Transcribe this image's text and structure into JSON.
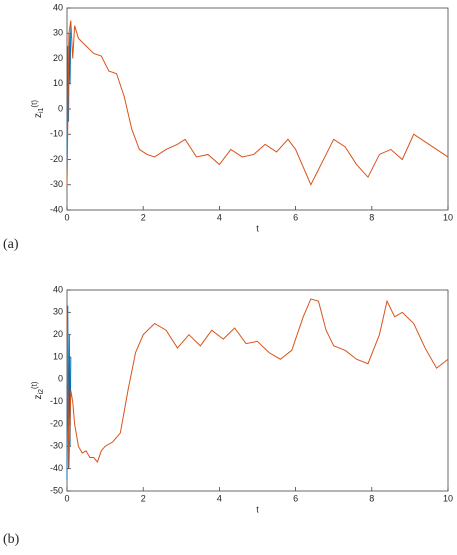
{
  "chart_data": [
    {
      "type": "line",
      "panel": "(a)",
      "xlabel": "t",
      "ylabel": {
        "base": "z",
        "subscript": "i1",
        "rest": "(t)"
      },
      "xlim": [
        0,
        10
      ],
      "xticks": [
        0,
        2,
        4,
        6,
        8,
        10
      ],
      "ylim": [
        -40,
        40
      ],
      "yticks": [
        -40,
        -30,
        -20,
        -10,
        0,
        10,
        20,
        30,
        40
      ],
      "series": [
        {
          "color": "#0072bd",
          "x": [
            0,
            0.02,
            0.04,
            0.06,
            0.08,
            0.1,
            0.12
          ],
          "values": [
            -28,
            25,
            -5,
            30,
            10,
            33,
            28
          ]
        },
        {
          "color": "#d95319",
          "x": [
            0,
            0.05,
            0.1,
            0.15,
            0.2,
            0.3,
            0.5,
            0.7,
            0.9,
            1.1,
            1.3,
            1.5,
            1.7,
            1.9,
            2.1,
            2.3,
            2.6,
            2.9,
            3.1,
            3.4,
            3.7,
            4.0,
            4.3,
            4.6,
            4.9,
            5.2,
            5.5,
            5.8,
            6.0,
            6.2,
            6.4,
            6.6,
            6.8,
            7.0,
            7.3,
            7.6,
            7.9,
            8.2,
            8.5,
            8.8,
            9.1,
            9.4,
            9.7,
            10
          ],
          "values": [
            -30,
            30,
            35,
            20,
            33,
            28,
            25,
            22,
            21,
            15,
            14,
            5,
            -8,
            -16,
            -18,
            -19,
            -16,
            -14,
            -12,
            -19,
            -18,
            -22,
            -16,
            -19,
            -18,
            -14,
            -17,
            -12,
            -16,
            -23,
            -30,
            -24,
            -18,
            -12,
            -15,
            -22,
            -27,
            -18,
            -16,
            -20,
            -10,
            -13,
            -16,
            -19
          ]
        }
      ]
    },
    {
      "type": "line",
      "panel": "(b)",
      "xlabel": "t",
      "ylabel": {
        "base": "z",
        "subscript": "i2",
        "rest": "(t)"
      },
      "xlim": [
        0,
        10
      ],
      "xticks": [
        0,
        2,
        4,
        6,
        8,
        10
      ],
      "ylim": [
        -50,
        40
      ],
      "yticks": [
        -50,
        -40,
        -30,
        -20,
        -10,
        0,
        10,
        20,
        30,
        40
      ],
      "series": [
        {
          "color": "#0072bd",
          "x": [
            0,
            0.02,
            0.04,
            0.06,
            0.08,
            0.1
          ],
          "values": [
            -45,
            33,
            -40,
            20,
            -30,
            10
          ]
        },
        {
          "color": "#d95319",
          "x": [
            0,
            0.05,
            0.1,
            0.15,
            0.2,
            0.3,
            0.4,
            0.5,
            0.6,
            0.7,
            0.8,
            0.9,
            1.0,
            1.2,
            1.4,
            1.6,
            1.8,
            2.0,
            2.3,
            2.6,
            2.9,
            3.2,
            3.5,
            3.8,
            4.1,
            4.4,
            4.7,
            5.0,
            5.3,
            5.6,
            5.9,
            6.2,
            6.4,
            6.6,
            6.8,
            7.0,
            7.3,
            7.6,
            7.9,
            8.2,
            8.4,
            8.6,
            8.8,
            9.1,
            9.4,
            9.7,
            10
          ],
          "values": [
            30,
            -40,
            -5,
            -10,
            -20,
            -30,
            -33,
            -32,
            -35,
            -35,
            -37,
            -32,
            -30,
            -28,
            -24,
            -5,
            12,
            20,
            25,
            22,
            14,
            20,
            15,
            22,
            18,
            23,
            16,
            17,
            12,
            9,
            13,
            28,
            36,
            35,
            22,
            15,
            13,
            9,
            7,
            20,
            35,
            28,
            30,
            25,
            14,
            5,
            9
          ]
        }
      ]
    }
  ]
}
